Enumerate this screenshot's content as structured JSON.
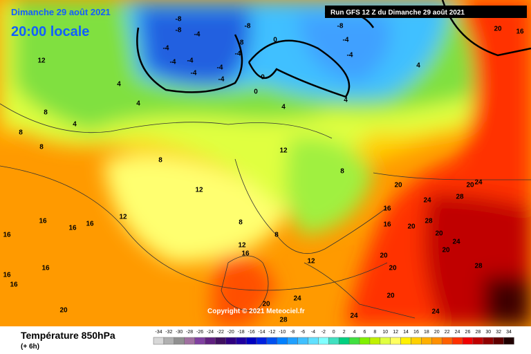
{
  "header": {
    "date": "Dimanche 29 août 2021",
    "time": "20:00 locale",
    "run": "Run GFS 12 Z du Dimanche 29 août 2021"
  },
  "copyright": "Copyright © 2021 Meteociel.fr",
  "footer": {
    "title": "Température 850hPa",
    "step": "(+ 6h)"
  },
  "legend": {
    "values": [
      -34,
      -32,
      -30,
      -28,
      -26,
      -24,
      -22,
      -20,
      -18,
      -16,
      -14,
      -12,
      -10,
      -8,
      -6,
      -4,
      -2,
      0,
      2,
      4,
      6,
      8,
      10,
      12,
      14,
      16,
      18,
      20,
      22,
      24,
      26,
      28,
      30,
      32,
      34
    ],
    "colors": [
      "#d8d8d8",
      "#b0b0b0",
      "#909090",
      "#a070a0",
      "#8040a0",
      "#602080",
      "#401060",
      "#300080",
      "#2000a0",
      "#0000c0",
      "#0020e0",
      "#0050f0",
      "#0080ff",
      "#20a0ff",
      "#40c0ff",
      "#60e0ff",
      "#80ffff",
      "#40e0c0",
      "#00d080",
      "#40e040",
      "#80f000",
      "#c0f000",
      "#e0ff40",
      "#ffff60",
      "#fff000",
      "#ffd000",
      "#ffb000",
      "#ff9000",
      "#ff6000",
      "#ff3000",
      "#f00000",
      "#c00000",
      "#900000",
      "#600000",
      "#200000"
    ]
  },
  "map_labels": [
    "-8",
    "-8",
    "-4",
    "-4",
    "-4",
    "-4",
    "-4",
    "-4",
    "-4",
    "-8",
    "-8",
    "-4",
    "0",
    "0",
    "0",
    "-8",
    "-4",
    "-4",
    "4",
    "4",
    "12",
    "4",
    "4",
    "8",
    "8",
    "8",
    "4",
    "4",
    "8",
    "12",
    "12",
    "16",
    "16",
    "16",
    "16",
    "16",
    "16",
    "16",
    "20",
    "8",
    "12",
    "8",
    "20",
    "24",
    "28",
    "20",
    "24",
    "28",
    "20",
    "20",
    "24",
    "20",
    "20",
    "20",
    "28",
    "24",
    "24",
    "24",
    "20",
    "20",
    "12",
    "16",
    "12",
    "28",
    "20",
    "8",
    "16",
    "16",
    "16"
  ]
}
